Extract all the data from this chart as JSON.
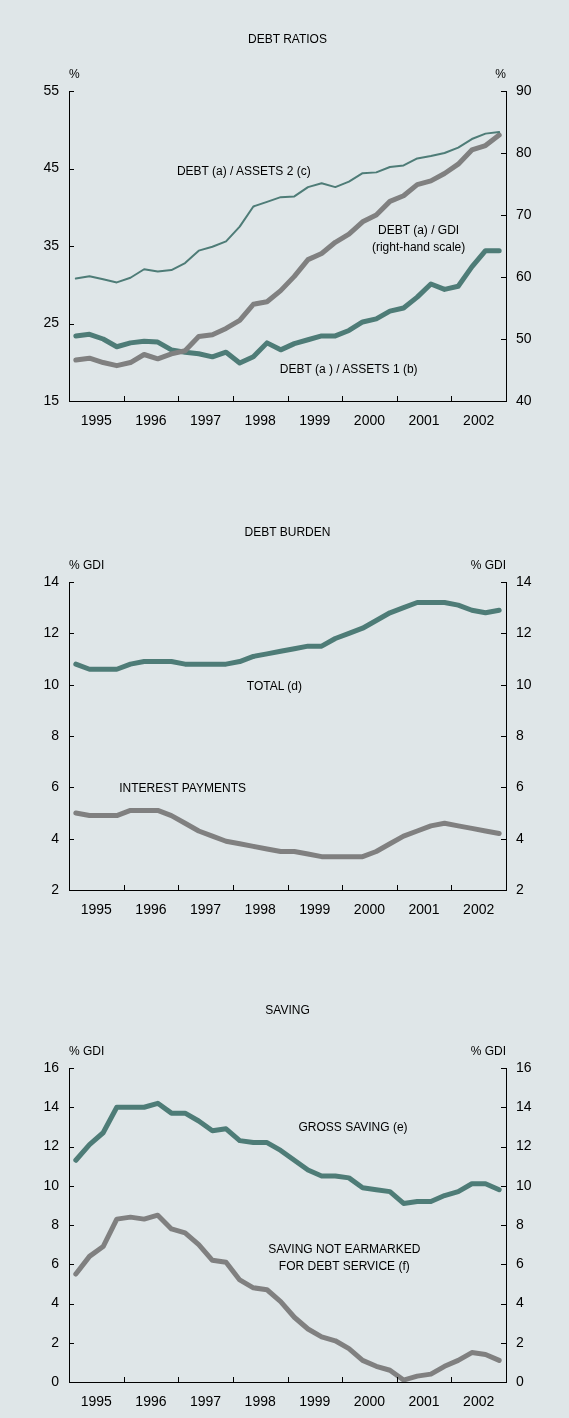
{
  "chart_data": [
    {
      "type": "line",
      "title": "DEBT RATIOS",
      "ylabel": "%",
      "y2label": "%",
      "xlim": [
        1995,
        2003
      ],
      "xticks": [
        {
          "value": 1995.5,
          "label": "1995"
        },
        {
          "value": 1996.5,
          "label": "1996"
        },
        {
          "value": 1997.5,
          "label": "1997"
        },
        {
          "value": 1998.5,
          "label": "1998"
        },
        {
          "value": 1999.5,
          "label": "1999"
        },
        {
          "value": 2000.5,
          "label": "2000"
        },
        {
          "value": 2001.5,
          "label": "2001"
        },
        {
          "value": 2002.5,
          "label": "2002"
        },
        {
          "value": 1996,
          "label": null
        },
        {
          "value": 1997,
          "label": null
        },
        {
          "value": 1998,
          "label": null
        },
        {
          "value": 1999,
          "label": null
        },
        {
          "value": 2000,
          "label": null
        },
        {
          "value": 2001,
          "label": null
        },
        {
          "value": 2002,
          "label": null
        }
      ],
      "ylim": [
        15,
        55
      ],
      "yticks": [
        15,
        25,
        35,
        45,
        55
      ],
      "y2lim": [
        40,
        90
      ],
      "y2ticks": [
        40,
        50,
        60,
        70,
        80,
        90
      ],
      "x": [
        1995.125,
        1995.375,
        1995.625,
        1995.875,
        1996.125,
        1996.375,
        1996.625,
        1996.875,
        1997.125,
        1997.375,
        1997.625,
        1997.875,
        1998.125,
        1998.375,
        1998.625,
        1998.875,
        1999.125,
        1999.375,
        1999.625,
        1999.875,
        2000.125,
        2000.375,
        2000.625,
        2000.875,
        2001.125,
        2001.375,
        2001.625,
        2001.875,
        2002.125,
        2002.375,
        2002.625,
        2002.875
      ],
      "series": [
        {
          "name": "DEBT (a) / ASSETS 2 (c)",
          "color": "#4e7c77",
          "values": [
            30.8,
            31.1,
            30.7,
            30.3,
            30.9,
            32.0,
            31.7,
            31.9,
            32.8,
            34.4,
            34.9,
            35.6,
            37.5,
            40.1,
            40.7,
            41.3,
            41.4,
            42.6,
            43.1,
            42.6,
            43.3,
            44.4,
            44.5,
            45.2,
            45.4,
            46.3,
            46.6,
            47.0,
            47.7,
            48.8,
            49.5,
            49.7
          ]
        },
        {
          "name": "DEBT (a) / GDI (right-hand scale)",
          "color": "#808080",
          "axis": "y2",
          "values": [
            46.6,
            46.9,
            46.2,
            45.7,
            46.2,
            47.5,
            46.8,
            47.6,
            48.1,
            50.4,
            50.7,
            51.7,
            53.0,
            55.6,
            56.0,
            57.8,
            60.1,
            62.8,
            63.8,
            65.6,
            66.9,
            68.9,
            70.0,
            72.2,
            73.1,
            74.9,
            75.5,
            76.7,
            78.2,
            80.5,
            81.2,
            82.9
          ]
        },
        {
          "name": "DEBT (a ) / ASSETS 1 (b)",
          "color": "#4e7c77",
          "values": [
            23.4,
            23.6,
            23.0,
            22.0,
            22.5,
            22.7,
            22.6,
            21.6,
            21.3,
            21.1,
            20.7,
            21.3,
            19.9,
            20.7,
            22.5,
            21.6,
            22.4,
            22.9,
            23.4,
            23.4,
            24.1,
            25.2,
            25.6,
            26.6,
            27.0,
            28.4,
            30.1,
            29.4,
            29.8,
            32.3,
            34.4,
            34.4
          ]
        }
      ]
    },
    {
      "type": "line",
      "title": "DEBT BURDEN",
      "ylabel": "% GDI",
      "y2label": "% GDI",
      "xlim": [
        1995,
        2003
      ],
      "xticks": [
        {
          "value": 1995.5,
          "label": "1995"
        },
        {
          "value": 1996.5,
          "label": "1996"
        },
        {
          "value": 1997.5,
          "label": "1997"
        },
        {
          "value": 1998.5,
          "label": "1998"
        },
        {
          "value": 1999.5,
          "label": "1999"
        },
        {
          "value": 2000.5,
          "label": "2000"
        },
        {
          "value": 2001.5,
          "label": "2001"
        },
        {
          "value": 2002.5,
          "label": "2002"
        },
        {
          "value": 1996,
          "label": null
        },
        {
          "value": 1997,
          "label": null
        },
        {
          "value": 1998,
          "label": null
        },
        {
          "value": 1999,
          "label": null
        },
        {
          "value": 2000,
          "label": null
        },
        {
          "value": 2001,
          "label": null
        },
        {
          "value": 2002,
          "label": null
        }
      ],
      "ylim": [
        2,
        14
      ],
      "yticks": [
        2,
        4,
        6,
        8,
        10,
        12,
        14
      ],
      "y2lim": [
        2,
        14
      ],
      "y2ticks": [
        2,
        4,
        6,
        8,
        10,
        12,
        14
      ],
      "x": [
        1995.125,
        1995.375,
        1995.625,
        1995.875,
        1996.125,
        1996.375,
        1996.625,
        1996.875,
        1997.125,
        1997.375,
        1997.625,
        1997.875,
        1998.125,
        1998.375,
        1998.625,
        1998.875,
        1999.125,
        1999.375,
        1999.625,
        1999.875,
        2000.125,
        2000.375,
        2000.625,
        2000.875,
        2001.125,
        2001.375,
        2001.625,
        2001.875,
        2002.125,
        2002.375,
        2002.625,
        2002.875
      ],
      "series": [
        {
          "name": "TOTAL (d)",
          "color": "#4e7c77",
          "values": [
            10.8,
            10.6,
            10.6,
            10.6,
            10.8,
            10.9,
            10.9,
            10.9,
            10.8,
            10.8,
            10.8,
            10.8,
            10.9,
            11.1,
            11.2,
            11.3,
            11.4,
            11.5,
            11.5,
            11.8,
            12.0,
            12.2,
            12.5,
            12.8,
            13.0,
            13.2,
            13.2,
            13.2,
            13.1,
            12.9,
            12.8,
            12.9
          ]
        },
        {
          "name": "INTEREST PAYMENTS",
          "color": "#808080",
          "values": [
            5.0,
            4.9,
            4.9,
            4.9,
            5.1,
            5.1,
            5.1,
            4.9,
            4.6,
            4.3,
            4.1,
            3.9,
            3.8,
            3.7,
            3.6,
            3.5,
            3.5,
            3.4,
            3.3,
            3.3,
            3.3,
            3.3,
            3.5,
            3.8,
            4.1,
            4.3,
            4.5,
            4.6,
            4.5,
            4.4,
            4.3,
            4.2
          ]
        }
      ]
    },
    {
      "type": "line",
      "title": "SAVING",
      "ylabel": "% GDI",
      "y2label": "% GDI",
      "xlim": [
        1995,
        2003
      ],
      "xticks": [
        {
          "value": 1995.5,
          "label": "1995"
        },
        {
          "value": 1996.5,
          "label": "1996"
        },
        {
          "value": 1997.5,
          "label": "1997"
        },
        {
          "value": 1998.5,
          "label": "1998"
        },
        {
          "value": 1999.5,
          "label": "1999"
        },
        {
          "value": 2000.5,
          "label": "2000"
        },
        {
          "value": 2001.5,
          "label": "2001"
        },
        {
          "value": 2002.5,
          "label": "2002"
        },
        {
          "value": 1996,
          "label": null
        },
        {
          "value": 1997,
          "label": null
        },
        {
          "value": 1998,
          "label": null
        },
        {
          "value": 1999,
          "label": null
        },
        {
          "value": 2000,
          "label": null
        },
        {
          "value": 2001,
          "label": null
        },
        {
          "value": 2002,
          "label": null
        }
      ],
      "ylim": [
        0,
        16
      ],
      "yticks": [
        0,
        2,
        4,
        6,
        8,
        10,
        12,
        14,
        16
      ],
      "y2lim": [
        0,
        16
      ],
      "y2ticks": [
        0,
        2,
        4,
        6,
        8,
        10,
        12,
        14,
        16
      ],
      "x": [
        1995.125,
        1995.375,
        1995.625,
        1995.875,
        1996.125,
        1996.375,
        1996.625,
        1996.875,
        1997.125,
        1997.375,
        1997.625,
        1997.875,
        1998.125,
        1998.375,
        1998.625,
        1998.875,
        1999.125,
        1999.375,
        1999.625,
        1999.875,
        2000.125,
        2000.375,
        2000.625,
        2000.875,
        2001.125,
        2001.375,
        2001.625,
        2001.875,
        2002.125,
        2002.375,
        2002.625,
        2002.875
      ],
      "series": [
        {
          "name": "GROSS SAVING (e)",
          "color": "#4e7c77",
          "values": [
            11.3,
            12.1,
            12.7,
            14.0,
            14.0,
            14.0,
            14.2,
            13.7,
            13.7,
            13.3,
            12.8,
            12.9,
            12.3,
            12.2,
            12.2,
            11.8,
            11.3,
            10.8,
            10.5,
            10.5,
            10.4,
            9.9,
            9.8,
            9.7,
            9.1,
            9.2,
            9.2,
            9.5,
            9.7,
            10.1,
            10.1,
            9.8
          ]
        },
        {
          "name": "SAVING NOT EARMARKED FOR DEBT SERVICE (f)",
          "color": "#808080",
          "values": [
            5.5,
            6.4,
            6.9,
            8.3,
            8.4,
            8.3,
            8.5,
            7.8,
            7.6,
            7.0,
            6.2,
            6.1,
            5.2,
            4.8,
            4.7,
            4.1,
            3.3,
            2.7,
            2.3,
            2.1,
            1.7,
            1.1,
            0.8,
            0.6,
            0.1,
            0.3,
            0.4,
            0.8,
            1.1,
            1.5,
            1.4,
            1.1
          ]
        }
      ]
    }
  ]
}
